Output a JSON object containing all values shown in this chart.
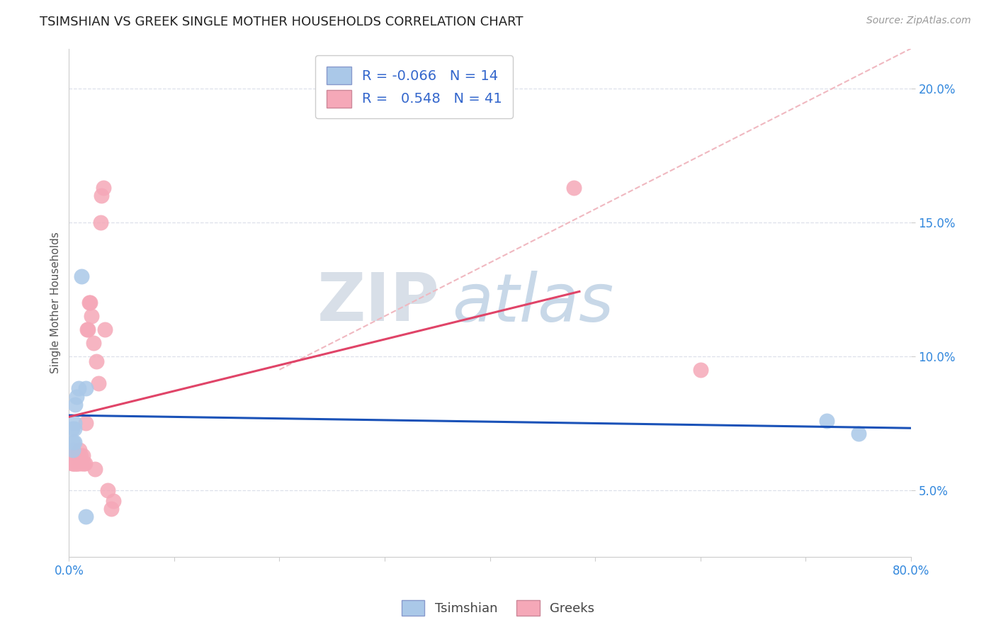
{
  "title": "TSIMSHIAN VS GREEK SINGLE MOTHER HOUSEHOLDS CORRELATION CHART",
  "source": "Source: ZipAtlas.com",
  "ylabel_label": "Single Mother Households",
  "xlim": [
    0.0,
    0.8
  ],
  "ylim": [
    0.025,
    0.215
  ],
  "xtick_positions": [
    0.0,
    0.1,
    0.2,
    0.3,
    0.4,
    0.5,
    0.6,
    0.7,
    0.8
  ],
  "xticklabels": [
    "0.0%",
    "",
    "",
    "",
    "",
    "",
    "",
    "",
    "80.0%"
  ],
  "ytick_positions": [
    0.05,
    0.1,
    0.15,
    0.2
  ],
  "yticklabels": [
    "5.0%",
    "10.0%",
    "15.0%",
    "20.0%"
  ],
  "legend1_r": "-0.066",
  "legend1_n": "14",
  "legend2_r": "0.548",
  "legend2_n": "41",
  "tsimshian_color": "#aac8e8",
  "greek_color": "#f5a8b8",
  "tsimshian_line_color": "#1a52b8",
  "greek_line_color": "#e04468",
  "diagonal_color": "#f0b8c0",
  "background_color": "#ffffff",
  "grid_color": "#dde0ea",
  "watermark_zip": "ZIP",
  "watermark_atlas": "atlas",
  "watermark_color": "#ccd8e8",
  "tsimshian_x": [
    0.003,
    0.004,
    0.004,
    0.005,
    0.005,
    0.005,
    0.006,
    0.007,
    0.009,
    0.012,
    0.016,
    0.016,
    0.72,
    0.75
  ],
  "tsimshian_y": [
    0.073,
    0.068,
    0.065,
    0.073,
    0.068,
    0.075,
    0.082,
    0.085,
    0.088,
    0.13,
    0.088,
    0.04,
    0.076,
    0.071
  ],
  "greek_x": [
    0.003,
    0.004,
    0.004,
    0.005,
    0.005,
    0.005,
    0.006,
    0.006,
    0.007,
    0.007,
    0.007,
    0.008,
    0.008,
    0.008,
    0.009,
    0.009,
    0.01,
    0.011,
    0.012,
    0.013,
    0.014,
    0.015,
    0.016,
    0.017,
    0.018,
    0.019,
    0.02,
    0.021,
    0.023,
    0.025,
    0.026,
    0.028,
    0.03,
    0.031,
    0.033,
    0.034,
    0.037,
    0.04,
    0.042,
    0.48,
    0.6
  ],
  "greek_y": [
    0.06,
    0.06,
    0.063,
    0.06,
    0.062,
    0.063,
    0.06,
    0.063,
    0.06,
    0.063,
    0.063,
    0.06,
    0.063,
    0.063,
    0.06,
    0.063,
    0.065,
    0.063,
    0.06,
    0.063,
    0.06,
    0.06,
    0.075,
    0.11,
    0.11,
    0.12,
    0.12,
    0.115,
    0.105,
    0.058,
    0.098,
    0.09,
    0.15,
    0.16,
    0.163,
    0.11,
    0.05,
    0.043,
    0.046,
    0.163,
    0.095
  ]
}
